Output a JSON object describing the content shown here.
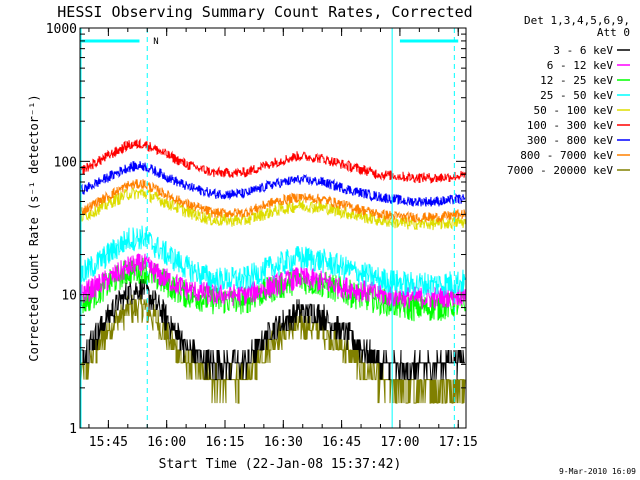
{
  "chart_data": {
    "type": "line",
    "title": "HESSI Observing Summary Count Rates, Corrected",
    "xlabel": "Start Time (22-Jan-08 15:37:42)",
    "ylabel": "Corrected Count Rate (s⁻¹ detector⁻¹)",
    "yscale": "log",
    "ylim": [
      1,
      1000
    ],
    "xlim": [
      "15:37:42",
      "17:17"
    ],
    "x_ticks": [
      "15:45",
      "16:00",
      "16:15",
      "16:30",
      "16:45",
      "17:00",
      "17:15"
    ],
    "y_ticks": [
      "1",
      "10",
      "100",
      "1000"
    ],
    "grid": false,
    "legend_position": "right",
    "legend_title": [
      "Det 1,3,4,5,6,9,",
      "Att 0"
    ],
    "footer": "9-Mar-2010 16:09",
    "flag_marker": "N",
    "vertical_markers": [
      "15:55",
      "16:58",
      "17:14"
    ],
    "bar_segments": [
      [
        "15:38",
        "15:53"
      ],
      [
        "17:00",
        "17:15"
      ]
    ],
    "profile_times": [
      "15:38",
      "15:45",
      "15:50",
      "15:54",
      "15:58",
      "16:05",
      "16:12",
      "16:20",
      "16:27",
      "16:34",
      "16:40",
      "16:48",
      "16:55",
      "17:02",
      "17:10",
      "17:15"
    ],
    "series": [
      {
        "name": "3 - 6 keV",
        "color": "#000000",
        "values": [
          3.3,
          7.0,
          10.5,
          11.0,
          8.0,
          4.0,
          3.0,
          3.0,
          5.5,
          7.5,
          7.0,
          4.5,
          3.0,
          2.8,
          3.0,
          3.3
        ]
      },
      {
        "name": "6 - 12 keV",
        "color": "#ff00ff",
        "values": [
          10,
          13,
          16,
          17,
          14,
          11,
          10,
          10,
          11.5,
          13.5,
          12.5,
          11,
          10,
          9.5,
          9.5,
          10
        ]
      },
      {
        "name": "12 - 25 keV",
        "color": "#00ff00",
        "values": [
          8.5,
          12,
          15,
          15.5,
          13,
          10,
          9,
          9,
          11,
          13,
          12,
          10,
          9,
          8,
          8,
          8.5
        ]
      },
      {
        "name": "25 - 50 keV",
        "color": "#00ffff",
        "values": [
          14,
          20,
          26,
          27,
          22,
          16,
          13,
          13,
          16,
          19,
          18,
          15,
          13,
          12,
          12,
          12.5
        ]
      },
      {
        "name": "50 - 100 keV",
        "color": "#dddd00",
        "values": [
          38,
          48,
          57,
          58,
          52,
          42,
          36,
          36,
          42,
          47,
          45,
          40,
          36,
          34,
          34,
          35
        ]
      },
      {
        "name": "100 - 300 keV",
        "color": "#ff0000",
        "values": [
          85,
          110,
          132,
          136,
          120,
          95,
          82,
          82,
          97,
          110,
          105,
          90,
          80,
          76,
          75,
          78
        ]
      },
      {
        "name": "300 - 800 keV",
        "color": "#0000ff",
        "values": [
          60,
          76,
          90,
          93,
          82,
          65,
          57,
          57,
          67,
          73,
          70,
          60,
          54,
          50,
          50,
          52
        ]
      },
      {
        "name": "800 - 7000 keV",
        "color": "#ff8000",
        "values": [
          42,
          55,
          66,
          68,
          60,
          48,
          41,
          41,
          49,
          54,
          52,
          45,
          40,
          38,
          38,
          40
        ]
      },
      {
        "name": "7000 - 20000 keV",
        "color": "#808000",
        "values": [
          2.5,
          5.5,
          7.8,
          8.2,
          6.0,
          3.0,
          2.3,
          2.3,
          4.5,
          6.0,
          5.5,
          3.3,
          2.2,
          2.0,
          2.0,
          2.2
        ]
      }
    ]
  }
}
